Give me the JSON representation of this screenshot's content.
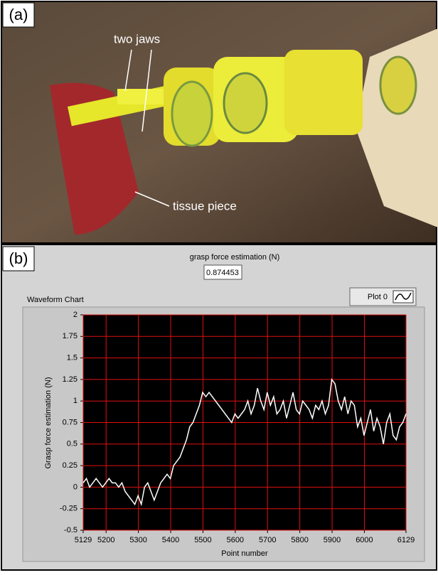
{
  "panel_labels": [
    "(a)",
    "(b)"
  ],
  "photo_annotations": [
    "two jaws",
    "tissue piece"
  ],
  "indicator": {
    "label": "grasp force estimation (N)",
    "value": 0.874453
  },
  "chart_data": {
    "type": "line",
    "title": "Waveform Chart",
    "xlabel": "Point number",
    "ylabel": "Grasp force estimation (N)",
    "x": [
      5129,
      5139,
      5149,
      5159,
      5169,
      5179,
      5189,
      5199,
      5209,
      5219,
      5229,
      5239,
      5249,
      5259,
      5269,
      5279,
      5289,
      5299,
      5309,
      5319,
      5329,
      5339,
      5349,
      5359,
      5369,
      5379,
      5389,
      5399,
      5409,
      5419,
      5429,
      5439,
      5449,
      5459,
      5469,
      5479,
      5489,
      5499,
      5509,
      5519,
      5529,
      5539,
      5549,
      5559,
      5569,
      5579,
      5589,
      5599,
      5609,
      5619,
      5629,
      5639,
      5649,
      5659,
      5669,
      5679,
      5689,
      5699,
      5709,
      5719,
      5729,
      5739,
      5749,
      5759,
      5769,
      5779,
      5789,
      5799,
      5809,
      5819,
      5829,
      5839,
      5849,
      5859,
      5869,
      5879,
      5889,
      5899,
      5909,
      5919,
      5929,
      5939,
      5949,
      5959,
      5969,
      5979,
      5989,
      5999,
      6009,
      6019,
      6029,
      6039,
      6049,
      6059,
      6069,
      6079,
      6089,
      6099,
      6109,
      6119,
      6129
    ],
    "series": [
      {
        "name": "Plot 0",
        "color": "#ffffff",
        "values": [
          0.05,
          0.1,
          0.0,
          0.05,
          0.1,
          0.05,
          0.0,
          0.05,
          0.1,
          0.05,
          0.05,
          0.0,
          0.05,
          -0.05,
          -0.1,
          -0.15,
          -0.2,
          -0.1,
          -0.2,
          0.0,
          0.05,
          -0.05,
          -0.15,
          -0.05,
          0.05,
          0.1,
          0.15,
          0.1,
          0.25,
          0.3,
          0.35,
          0.45,
          0.55,
          0.7,
          0.75,
          0.85,
          0.95,
          1.1,
          1.05,
          1.1,
          1.05,
          1.0,
          0.95,
          0.9,
          0.85,
          0.8,
          0.75,
          0.85,
          0.8,
          0.85,
          0.9,
          1.0,
          0.85,
          0.95,
          1.15,
          1.0,
          0.9,
          1.1,
          0.95,
          1.05,
          0.85,
          0.9,
          1.0,
          0.8,
          0.95,
          1.1,
          0.9,
          0.85,
          1.0,
          0.95,
          0.9,
          0.8,
          0.95,
          0.9,
          1.0,
          0.85,
          0.95,
          1.25,
          1.2,
          1.0,
          0.9,
          1.05,
          0.85,
          1.0,
          0.95,
          0.7,
          0.8,
          0.6,
          0.75,
          0.9,
          0.65,
          0.8,
          0.7,
          0.5,
          0.75,
          0.85,
          0.6,
          0.55,
          0.7,
          0.75,
          0.85
        ]
      }
    ],
    "xlim": [
      5129,
      6129
    ],
    "ylim": [
      -0.5,
      2
    ],
    "xticks": [
      5129,
      5200,
      5300,
      5400,
      5500,
      5600,
      5700,
      5800,
      5900,
      6000,
      6129
    ],
    "yticks": [
      -0.5,
      -0.25,
      0,
      0.25,
      0.5,
      0.75,
      1,
      1.25,
      1.5,
      1.75,
      2
    ],
    "grid": true,
    "grid_color": "#e01010",
    "plot_background": "#000000"
  }
}
